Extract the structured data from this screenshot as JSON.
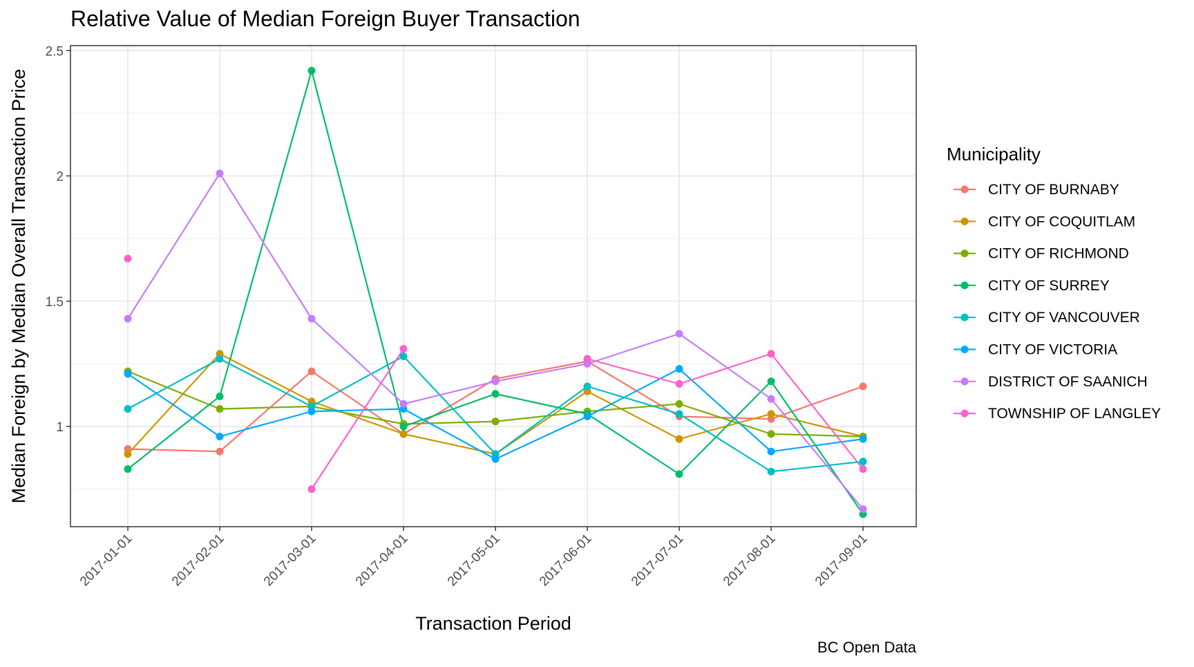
{
  "chart_data": {
    "type": "line",
    "title": "Relative Value of Median Foreign Buyer Transaction",
    "xlabel": "Transaction Period",
    "ylabel": "Median Foreign by Median Overall Transaction Price",
    "caption": "BC Open Data",
    "categories": [
      "2017-01-01",
      "2017-02-01",
      "2017-03-01",
      "2017-04-01",
      "2017-05-01",
      "2017-06-01",
      "2017-07-01",
      "2017-08-01",
      "2017-09-01"
    ],
    "ylim": [
      0.6,
      2.52
    ],
    "yticks": [
      1,
      1.5,
      2,
      2.5
    ],
    "ytick_labels": [
      "1",
      "1.5",
      "2",
      "2.5"
    ],
    "grid": true,
    "legend_title": "Municipality",
    "legend_position": "right",
    "series": [
      {
        "name": "CITY OF BURNABY",
        "color": "#F8766D",
        "values": [
          0.91,
          0.9,
          1.22,
          0.97,
          1.19,
          1.26,
          1.04,
          1.03,
          1.16
        ]
      },
      {
        "name": "CITY OF COQUITLAM",
        "color": "#CD9600",
        "values": [
          0.89,
          1.29,
          1.1,
          0.97,
          0.89,
          1.14,
          0.95,
          1.05,
          0.96
        ]
      },
      {
        "name": "CITY OF RICHMOND",
        "color": "#7CAE00",
        "values": [
          1.22,
          1.07,
          1.08,
          1.01,
          1.02,
          1.06,
          1.09,
          0.97,
          0.96
        ]
      },
      {
        "name": "CITY OF SURREY",
        "color": "#00BE67",
        "values": [
          0.83,
          1.12,
          2.42,
          1.0,
          1.13,
          1.05,
          0.81,
          1.18,
          0.65
        ]
      },
      {
        "name": "CITY OF VANCOUVER",
        "color": "#00BFC4",
        "values": [
          1.07,
          1.27,
          1.08,
          1.28,
          0.89,
          1.16,
          1.05,
          0.82,
          0.86
        ]
      },
      {
        "name": "CITY OF VICTORIA",
        "color": "#00A9FF",
        "values": [
          1.21,
          0.96,
          1.06,
          1.07,
          0.87,
          1.04,
          1.23,
          0.9,
          0.95
        ]
      },
      {
        "name": "DISTRICT OF SAANICH",
        "color": "#C77CFF",
        "values": [
          1.43,
          2.01,
          1.43,
          1.09,
          1.18,
          1.25,
          1.37,
          1.11,
          0.67
        ]
      },
      {
        "name": "TOWNSHIP OF LANGLEY",
        "color": "#FF61CC",
        "values": [
          1.67,
          null,
          0.75,
          1.31,
          null,
          1.27,
          1.17,
          1.29,
          0.83
        ]
      }
    ]
  }
}
